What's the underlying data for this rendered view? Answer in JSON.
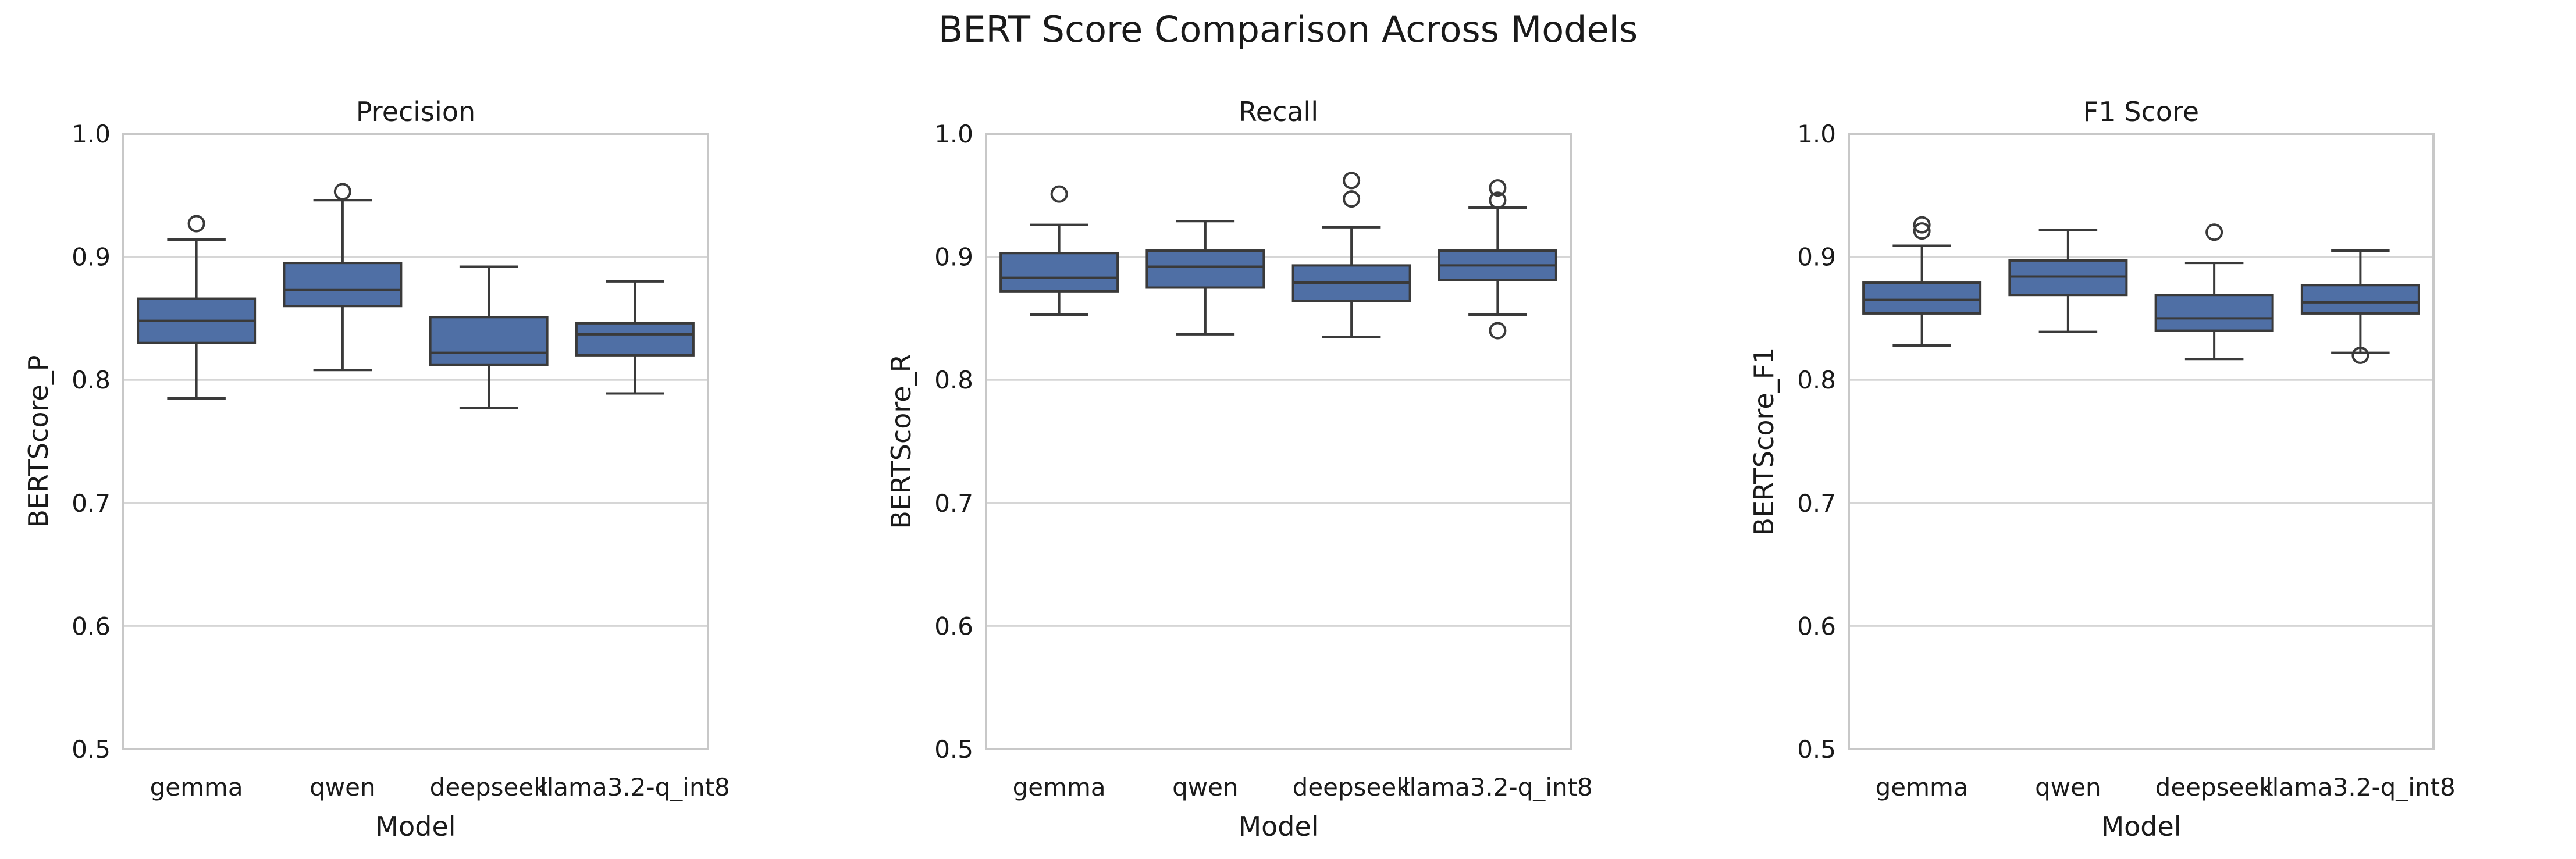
{
  "figure": {
    "title": "BERT Score Comparison Across Models"
  },
  "colors": {
    "box_fill": "#4f6fa5",
    "box_edge": "#3a3a3a",
    "grid": "#d6d6d6",
    "frame": "#c8c8c8"
  },
  "chart_data": [
    {
      "type": "box",
      "title": "Precision",
      "xlabel": "Model",
      "ylabel": "BERTScore_P",
      "ylim": [
        0.5,
        1.0
      ],
      "yticks": [
        "0.5",
        "0.6",
        "0.7",
        "0.8",
        "0.9",
        "1.0"
      ],
      "categories": [
        "gemma",
        "qwen",
        "deepseek",
        "llama3.2-q_int8"
      ],
      "grid": "horizontal",
      "boxes": [
        {
          "whisker_low": 0.785,
          "q1": 0.83,
          "median": 0.848,
          "q3": 0.866,
          "whisker_high": 0.914,
          "outliers": [
            0.927
          ]
        },
        {
          "whisker_low": 0.808,
          "q1": 0.86,
          "median": 0.873,
          "q3": 0.895,
          "whisker_high": 0.946,
          "outliers": [
            0.953
          ]
        },
        {
          "whisker_low": 0.777,
          "q1": 0.812,
          "median": 0.822,
          "q3": 0.851,
          "whisker_high": 0.892,
          "outliers": []
        },
        {
          "whisker_low": 0.789,
          "q1": 0.82,
          "median": 0.837,
          "q3": 0.846,
          "whisker_high": 0.88,
          "outliers": []
        }
      ]
    },
    {
      "type": "box",
      "title": "Recall",
      "xlabel": "Model",
      "ylabel": "BERTScore_R",
      "ylim": [
        0.5,
        1.0
      ],
      "yticks": [
        "0.5",
        "0.6",
        "0.7",
        "0.8",
        "0.9",
        "1.0"
      ],
      "categories": [
        "gemma",
        "qwen",
        "deepseek",
        "llama3.2-q_int8"
      ],
      "grid": "horizontal",
      "boxes": [
        {
          "whisker_low": 0.853,
          "q1": 0.872,
          "median": 0.883,
          "q3": 0.903,
          "whisker_high": 0.926,
          "outliers": [
            0.951
          ]
        },
        {
          "whisker_low": 0.837,
          "q1": 0.875,
          "median": 0.892,
          "q3": 0.905,
          "whisker_high": 0.929,
          "outliers": []
        },
        {
          "whisker_low": 0.835,
          "q1": 0.864,
          "median": 0.879,
          "q3": 0.893,
          "whisker_high": 0.924,
          "outliers": [
            0.947,
            0.962
          ]
        },
        {
          "whisker_low": 0.853,
          "q1": 0.881,
          "median": 0.893,
          "q3": 0.905,
          "whisker_high": 0.94,
          "outliers": [
            0.84,
            0.946,
            0.956
          ]
        }
      ]
    },
    {
      "type": "box",
      "title": "F1 Score",
      "xlabel": "Model",
      "ylabel": "BERTScore_F1",
      "ylim": [
        0.5,
        1.0
      ],
      "yticks": [
        "0.5",
        "0.6",
        "0.7",
        "0.8",
        "0.9",
        "1.0"
      ],
      "categories": [
        "gemma",
        "qwen",
        "deepseek",
        "llama3.2-q_int8"
      ],
      "grid": "horizontal",
      "boxes": [
        {
          "whisker_low": 0.828,
          "q1": 0.854,
          "median": 0.865,
          "q3": 0.879,
          "whisker_high": 0.909,
          "outliers": [
            0.921,
            0.926
          ]
        },
        {
          "whisker_low": 0.839,
          "q1": 0.869,
          "median": 0.884,
          "q3": 0.897,
          "whisker_high": 0.922,
          "outliers": []
        },
        {
          "whisker_low": 0.817,
          "q1": 0.84,
          "median": 0.85,
          "q3": 0.869,
          "whisker_high": 0.895,
          "outliers": [
            0.92
          ]
        },
        {
          "whisker_low": 0.822,
          "q1": 0.854,
          "median": 0.863,
          "q3": 0.877,
          "whisker_high": 0.905,
          "outliers": [
            0.82
          ]
        }
      ]
    }
  ]
}
